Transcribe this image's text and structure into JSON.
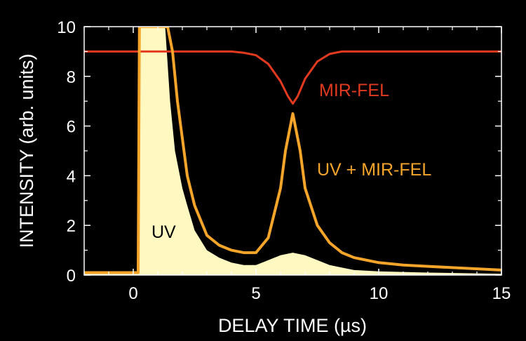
{
  "chart_data": {
    "type": "line",
    "title": "",
    "xlabel": "DELAY TIME (µs)",
    "ylabel": "INTENSITY (arb. units)",
    "xlim": [
      -2,
      15
    ],
    "ylim": [
      0,
      10
    ],
    "xticks": [
      0,
      5,
      10,
      15
    ],
    "yticks": [
      0,
      2,
      4,
      6,
      8,
      10
    ],
    "grid": false,
    "legend": "none",
    "colors": {
      "background": "#000000",
      "axes": "#ffffff"
    },
    "series": [
      {
        "name": "MIR-FEL",
        "type": "line",
        "color": "#e23a1e",
        "x": [
          -2,
          4.0,
          4.5,
          5.0,
          5.5,
          6.0,
          6.3,
          6.5,
          6.7,
          7.0,
          7.5,
          8.0,
          8.5,
          9.0,
          15
        ],
        "y": [
          9.0,
          9.0,
          8.95,
          8.85,
          8.5,
          7.8,
          7.2,
          6.9,
          7.2,
          7.9,
          8.6,
          8.9,
          9.0,
          9.0,
          9.0
        ]
      },
      {
        "name": "UV + MIR-FEL",
        "type": "line",
        "color": "#f5a52a",
        "x": [
          -2,
          0.2,
          0.25,
          0.5,
          1.0,
          1.2,
          1.4,
          1.6,
          1.8,
          2.0,
          2.2,
          2.5,
          3.0,
          3.5,
          4.0,
          4.5,
          5.0,
          5.5,
          6.0,
          6.2,
          6.5,
          6.8,
          7.0,
          7.5,
          8.0,
          8.5,
          9.0,
          10.0,
          11.0,
          12.0,
          13.0,
          14.0,
          15.0
        ],
        "y": [
          0.1,
          0.1,
          10.0,
          10.0,
          10.0,
          10.0,
          10.0,
          9.0,
          7.0,
          5.5,
          4.0,
          2.8,
          1.6,
          1.2,
          1.0,
          0.9,
          0.9,
          1.5,
          3.5,
          5.0,
          6.5,
          5.0,
          3.5,
          2.0,
          1.3,
          0.9,
          0.7,
          0.5,
          0.4,
          0.35,
          0.3,
          0.25,
          0.2
        ]
      },
      {
        "name": "UV",
        "type": "area",
        "color": "#fff8c0",
        "x": [
          -2,
          0.2,
          0.25,
          0.5,
          1.0,
          1.3,
          1.5,
          1.7,
          2.0,
          2.2,
          2.5,
          3.0,
          3.5,
          4.0,
          4.5,
          5.0,
          5.5,
          6.0,
          6.5,
          7.0,
          7.5,
          8.0,
          8.5,
          9.0,
          10.0,
          12.0,
          15.0
        ],
        "y": [
          0.05,
          0.05,
          10.0,
          10.0,
          10.0,
          10.0,
          7.0,
          5.0,
          3.5,
          2.8,
          1.8,
          1.0,
          0.7,
          0.5,
          0.4,
          0.4,
          0.6,
          0.8,
          0.9,
          0.8,
          0.6,
          0.4,
          0.3,
          0.2,
          0.15,
          0.1,
          0.05
        ]
      }
    ],
    "annotations": [
      {
        "text": "MIR-FEL",
        "color": "#e23a1e"
      },
      {
        "text": "UV + MIR-FEL",
        "color": "#f5a52a"
      },
      {
        "text": "UV",
        "color": "#000000"
      }
    ]
  }
}
